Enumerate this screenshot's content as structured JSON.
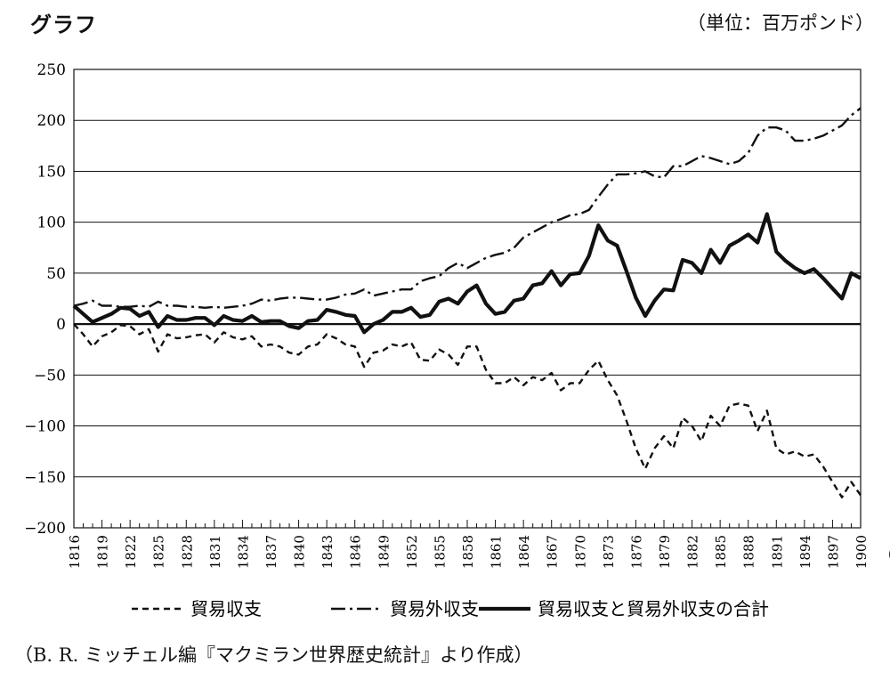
{
  "header": {
    "title": "グラフ",
    "unit": "（単位：百万ポンド）"
  },
  "footer": {
    "source": "（B. R. ミッチェル編『マクミラン世界歴史統計』より作成）"
  },
  "chart_data": {
    "type": "line",
    "title": "グラフ",
    "unit_label": "（単位：百万ポンド）",
    "xlabel": "（年）",
    "ylabel": "",
    "xlim": [
      1816,
      1900
    ],
    "ylim": [
      -200,
      250
    ],
    "yticks": [
      250,
      200,
      150,
      100,
      50,
      0,
      -50,
      -100,
      -150,
      -200
    ],
    "ytick_labels": [
      "250",
      "200",
      "150",
      "100",
      "50",
      "0",
      "−50",
      "−100",
      "−150",
      "−200"
    ],
    "xticks": [
      1816,
      1819,
      1822,
      1825,
      1828,
      1831,
      1834,
      1837,
      1840,
      1843,
      1846,
      1849,
      1852,
      1855,
      1858,
      1861,
      1864,
      1867,
      1870,
      1873,
      1876,
      1879,
      1882,
      1885,
      1888,
      1891,
      1894,
      1897,
      1900
    ],
    "grid": "horizontal",
    "legend_position": "bottom",
    "x": [
      1816,
      1817,
      1818,
      1819,
      1820,
      1821,
      1822,
      1823,
      1824,
      1825,
      1826,
      1827,
      1828,
      1829,
      1830,
      1831,
      1832,
      1833,
      1834,
      1835,
      1836,
      1837,
      1838,
      1839,
      1840,
      1841,
      1842,
      1843,
      1844,
      1845,
      1846,
      1847,
      1848,
      1849,
      1850,
      1851,
      1852,
      1853,
      1854,
      1855,
      1856,
      1857,
      1858,
      1859,
      1860,
      1861,
      1862,
      1863,
      1864,
      1865,
      1866,
      1867,
      1868,
      1869,
      1870,
      1871,
      1872,
      1873,
      1874,
      1875,
      1876,
      1877,
      1878,
      1879,
      1880,
      1881,
      1882,
      1883,
      1884,
      1885,
      1886,
      1887,
      1888,
      1889,
      1890,
      1891,
      1892,
      1893,
      1894,
      1895,
      1896,
      1897,
      1898,
      1899,
      1900
    ],
    "series": [
      {
        "name": "貿易収支",
        "style": "dashed",
        "color": "#111111",
        "values": [
          0,
          -10,
          -22,
          -12,
          -8,
          -1,
          -2,
          -10,
          -5,
          -27,
          -10,
          -14,
          -13,
          -11,
          -10,
          -18,
          -8,
          -13,
          -15,
          -12,
          -22,
          -20,
          -22,
          -28,
          -30,
          -22,
          -20,
          -10,
          -14,
          -20,
          -22,
          -42,
          -28,
          -26,
          -20,
          -22,
          -18,
          -35,
          -36,
          -25,
          -30,
          -40,
          -22,
          -22,
          -45,
          -58,
          -58,
          -52,
          -60,
          -52,
          -55,
          -48,
          -65,
          -58,
          -58,
          -45,
          -36,
          -55,
          -70,
          -95,
          -122,
          -142,
          -122,
          -110,
          -122,
          -92,
          -100,
          -115,
          -90,
          -100,
          -80,
          -78,
          -80,
          -105,
          -85,
          -122,
          -128,
          -125,
          -130,
          -128,
          -140,
          -155,
          -170,
          -155,
          -168
        ]
      },
      {
        "name": "貿易外収支",
        "style": "dash-dot",
        "color": "#111111",
        "values": [
          18,
          20,
          23,
          18,
          18,
          17,
          17,
          18,
          17,
          22,
          18,
          18,
          17,
          17,
          16,
          17,
          16,
          17,
          18,
          20,
          24,
          23,
          25,
          26,
          26,
          25,
          24,
          24,
          26,
          29,
          30,
          34,
          28,
          30,
          32,
          34,
          34,
          42,
          45,
          47,
          55,
          60,
          55,
          60,
          65,
          68,
          70,
          75,
          85,
          90,
          95,
          100,
          103,
          107,
          108,
          112,
          125,
          137,
          147,
          147,
          148,
          150,
          145,
          144,
          155,
          155,
          160,
          165,
          163,
          160,
          157,
          160,
          168,
          185,
          193,
          193,
          190,
          180,
          180,
          182,
          185,
          190,
          195,
          205,
          212
        ]
      },
      {
        "name": "貿易収支と貿易外収支の合計",
        "style": "solid",
        "color": "#111111",
        "values": [
          18,
          10,
          2,
          6,
          10,
          16,
          15,
          8,
          12,
          -3,
          8,
          4,
          4,
          6,
          6,
          -1,
          8,
          4,
          3,
          8,
          2,
          3,
          3,
          -2,
          -4,
          3,
          4,
          14,
          12,
          9,
          8,
          -8,
          0,
          4,
          12,
          12,
          16,
          7,
          9,
          22,
          25,
          20,
          32,
          38,
          20,
          10,
          12,
          23,
          25,
          38,
          40,
          52,
          38,
          49,
          50,
          67,
          97,
          82,
          77,
          52,
          26,
          8,
          23,
          34,
          33,
          63,
          60,
          50,
          73,
          60,
          77,
          82,
          88,
          80,
          108,
          71,
          62,
          55,
          50,
          54,
          45,
          35,
          25,
          50,
          45
        ]
      }
    ]
  }
}
